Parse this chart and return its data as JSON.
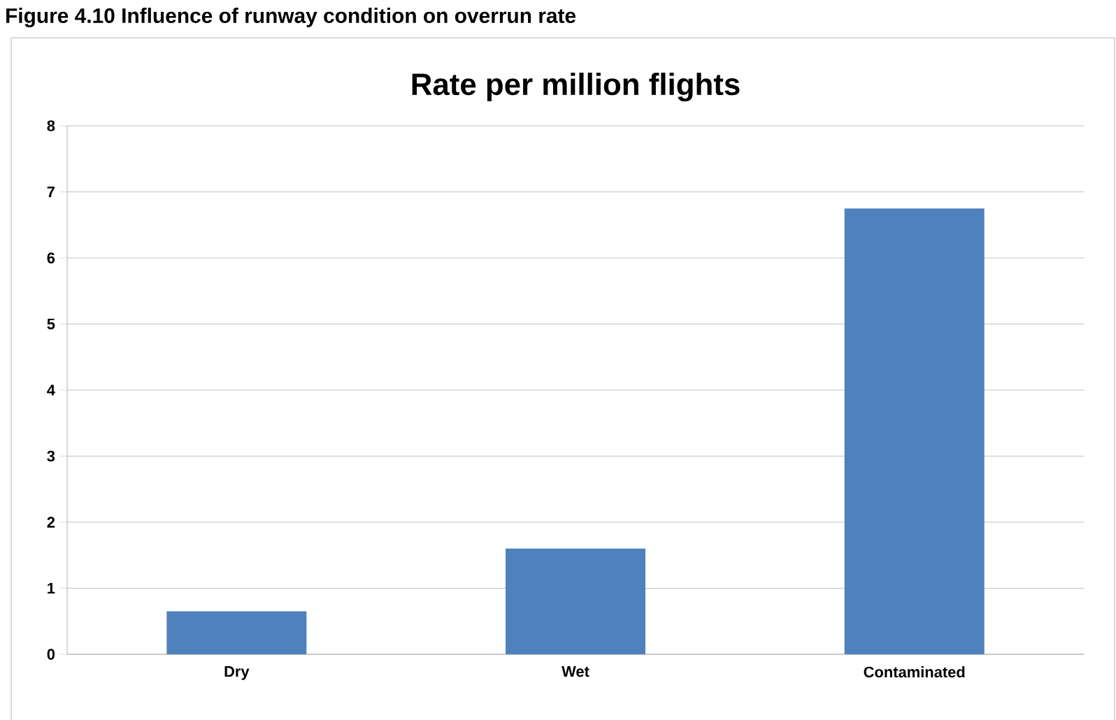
{
  "chart_data": {
    "type": "bar",
    "title": "Rate per million flights",
    "annotations": [
      "Figure 4.10 Influence of runway condition on overrun rate"
    ],
    "categories": [
      "Dry",
      "Wet",
      "Contaminated"
    ],
    "values": [
      0.65,
      1.6,
      6.75
    ],
    "color": "#4f81bd",
    "ylim": [
      0,
      8
    ],
    "yticks": [
      0,
      1,
      2,
      3,
      4,
      5,
      6,
      7,
      8
    ],
    "grid": "y"
  }
}
